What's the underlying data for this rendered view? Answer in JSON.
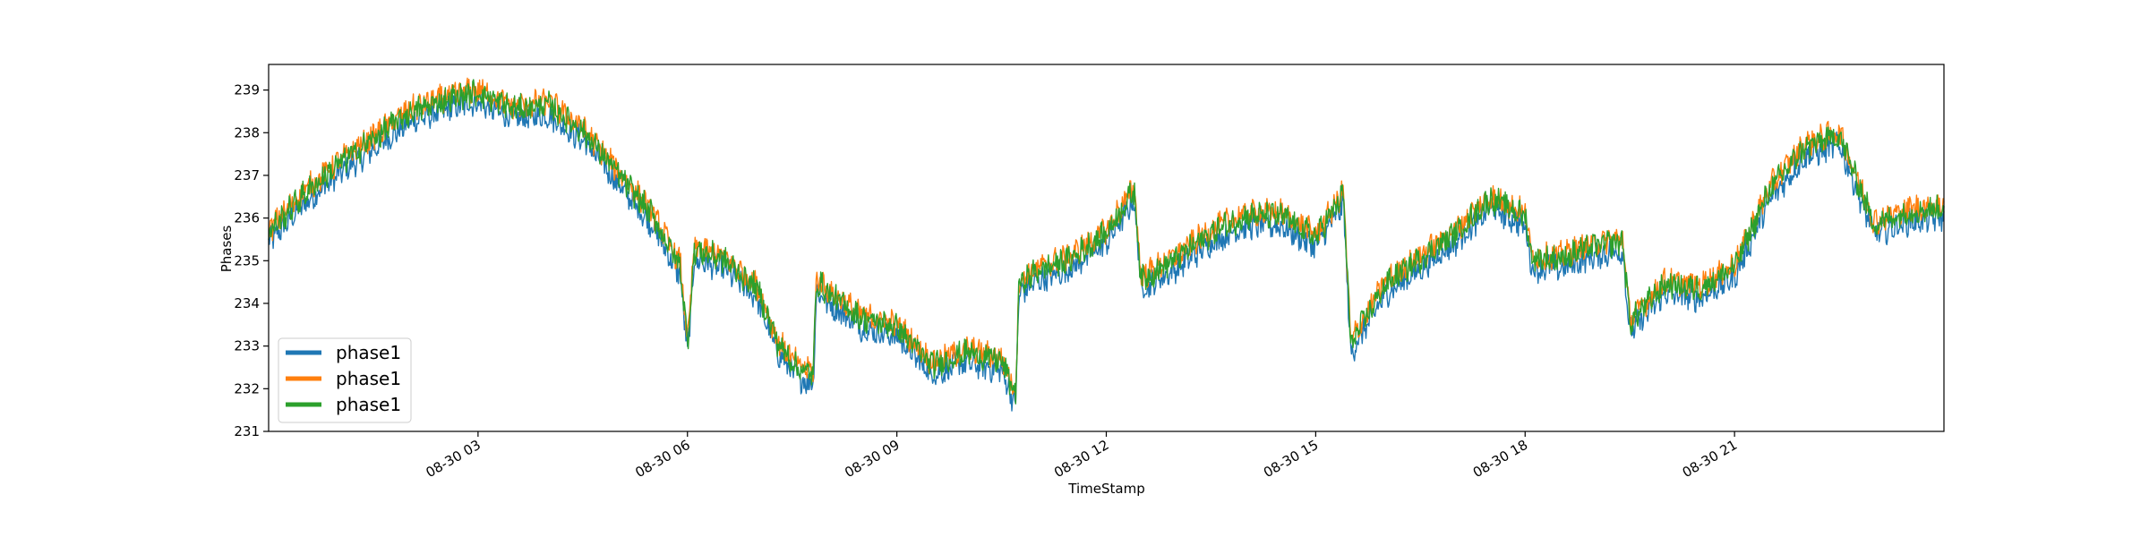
{
  "chart_data": {
    "type": "line",
    "title": "",
    "xlabel": "TimeStamp",
    "ylabel": "Phases",
    "x_ticks": [
      "08-30 03",
      "08-30 06",
      "08-30 09",
      "08-30 12",
      "08-30 15",
      "08-30 18",
      "08-30 21"
    ],
    "x_tick_hours": [
      3,
      6,
      9,
      12,
      15,
      18,
      21
    ],
    "xlim_hours": [
      0,
      24
    ],
    "y_ticks": [
      "231",
      "232",
      "233",
      "234",
      "235",
      "236",
      "237",
      "238",
      "239"
    ],
    "ylim": [
      231,
      239.6
    ],
    "grid": false,
    "legend_position": "lower-left",
    "series": [
      {
        "name": "phase1",
        "color": "#1f77b4",
        "offset": -0.18,
        "x": [
          0,
          0.5,
          1,
          1.5,
          2,
          2.5,
          3,
          3.5,
          4,
          4.5,
          5,
          5.5,
          5.9,
          6.0,
          6.1,
          6.5,
          7,
          7.3,
          7.6,
          7.8,
          7.85,
          8.0,
          8.5,
          9,
          9.5,
          10,
          10.5,
          10.7,
          10.75,
          11,
          11.5,
          12,
          12.4,
          12.5,
          13,
          13.5,
          14,
          14.5,
          15.0,
          15.4,
          15.5,
          16,
          16.5,
          17,
          17.5,
          18,
          18.1,
          18.5,
          19,
          19.4,
          19.5,
          20,
          20.5,
          21,
          21.5,
          22,
          22.5,
          23,
          23.5,
          24
        ],
        "values": [
          235.6,
          236.5,
          237.2,
          237.8,
          238.4,
          238.7,
          238.9,
          238.5,
          238.6,
          238.0,
          237.0,
          236.0,
          234.8,
          233.0,
          235.2,
          235.0,
          234.3,
          233.0,
          232.4,
          232.3,
          234.5,
          234.2,
          233.6,
          233.4,
          232.5,
          232.8,
          232.6,
          231.8,
          234.4,
          234.7,
          235.0,
          235.6,
          236.6,
          234.5,
          235.0,
          235.6,
          236.0,
          236.0,
          235.5,
          236.5,
          233.0,
          234.4,
          235.0,
          235.6,
          236.4,
          236.0,
          235.0,
          235.0,
          235.3,
          235.4,
          233.5,
          234.4,
          234.3,
          234.8,
          236.6,
          237.6,
          237.9,
          235.8,
          236.1,
          236.2
        ]
      },
      {
        "name": "phase1",
        "color": "#ff7f0e",
        "offset": 0.12,
        "x": [
          0,
          0.5,
          1,
          1.5,
          2,
          2.5,
          3,
          3.5,
          4,
          4.5,
          5,
          5.5,
          5.9,
          6.0,
          6.1,
          6.5,
          7,
          7.3,
          7.6,
          7.8,
          7.85,
          8.0,
          8.5,
          9,
          9.5,
          10,
          10.5,
          10.7,
          10.75,
          11,
          11.5,
          12,
          12.4,
          12.5,
          13,
          13.5,
          14,
          14.5,
          15.0,
          15.4,
          15.5,
          16,
          16.5,
          17,
          17.5,
          18,
          18.1,
          18.5,
          19,
          19.4,
          19.5,
          20,
          20.5,
          21,
          21.5,
          22,
          22.5,
          23,
          23.5,
          24
        ],
        "values": [
          235.6,
          236.5,
          237.2,
          237.8,
          238.4,
          238.7,
          238.9,
          238.5,
          238.6,
          238.0,
          237.0,
          236.0,
          234.8,
          233.0,
          235.2,
          235.0,
          234.3,
          233.0,
          232.4,
          232.3,
          234.5,
          234.2,
          233.6,
          233.4,
          232.5,
          232.8,
          232.6,
          231.8,
          234.4,
          234.7,
          235.0,
          235.6,
          236.6,
          234.5,
          235.0,
          235.6,
          236.0,
          236.0,
          235.5,
          236.5,
          233.0,
          234.4,
          235.0,
          235.6,
          236.4,
          236.0,
          235.0,
          235.0,
          235.3,
          235.4,
          233.5,
          234.4,
          234.3,
          234.8,
          236.6,
          237.6,
          237.9,
          235.8,
          236.1,
          236.2
        ]
      },
      {
        "name": "phase1",
        "color": "#2ca02c",
        "offset": 0.05,
        "x": [
          0,
          0.5,
          1,
          1.5,
          2,
          2.5,
          3,
          3.5,
          4,
          4.5,
          5,
          5.5,
          5.9,
          6.0,
          6.1,
          6.5,
          7,
          7.3,
          7.6,
          7.8,
          7.85,
          8.0,
          8.5,
          9,
          9.5,
          10,
          10.5,
          10.7,
          10.75,
          11,
          11.5,
          12,
          12.4,
          12.5,
          13,
          13.5,
          14,
          14.5,
          15.0,
          15.4,
          15.5,
          16,
          16.5,
          17,
          17.5,
          18,
          18.1,
          18.5,
          19,
          19.4,
          19.5,
          20,
          20.5,
          21,
          21.5,
          22,
          22.5,
          23,
          23.5,
          24
        ],
        "values": [
          235.6,
          236.5,
          237.2,
          237.8,
          238.4,
          238.7,
          238.9,
          238.5,
          238.6,
          238.0,
          237.0,
          236.0,
          234.8,
          233.0,
          235.2,
          235.0,
          234.3,
          233.0,
          232.4,
          232.3,
          234.5,
          234.2,
          233.6,
          233.4,
          232.5,
          232.8,
          232.6,
          231.8,
          234.4,
          234.7,
          235.0,
          235.6,
          236.6,
          234.5,
          235.0,
          235.6,
          236.0,
          236.0,
          235.5,
          236.5,
          233.0,
          234.4,
          235.0,
          235.6,
          236.4,
          236.0,
          235.0,
          235.0,
          235.3,
          235.4,
          233.5,
          234.4,
          234.3,
          234.8,
          236.6,
          237.6,
          237.9,
          235.8,
          236.1,
          236.2
        ]
      }
    ]
  }
}
